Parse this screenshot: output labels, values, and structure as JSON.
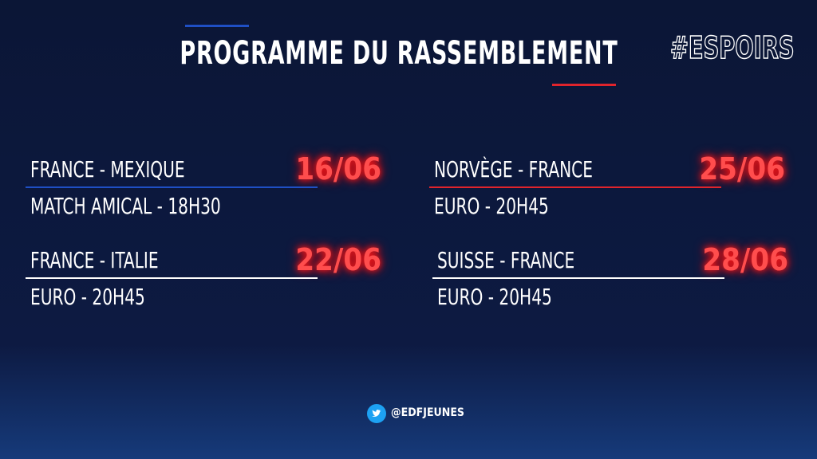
{
  "header": {
    "title": "PROGRAMME DU RASSEMBLEMENT",
    "hashtag": "#ESPOIRS"
  },
  "matches": [
    {
      "teams": "FRANCE - MEXIQUE",
      "date": "16/06",
      "info": "MATCH AMICAL - 18H30"
    },
    {
      "teams": "NORVÈGE - FRANCE",
      "date": "25/06",
      "info": "EURO - 20H45"
    },
    {
      "teams": "FRANCE - ITALIE",
      "date": "22/06",
      "info": "EURO - 20H45"
    },
    {
      "teams": "SUISSE - FRANCE",
      "date": "28/06",
      "info": "EURO - 20H45"
    }
  ],
  "footer": {
    "handle": "@EDFJEUNES"
  }
}
